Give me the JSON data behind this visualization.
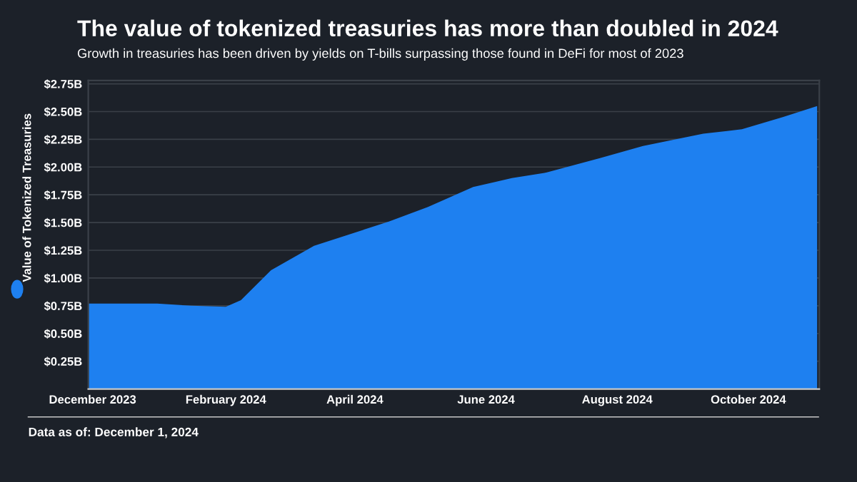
{
  "chart_data": {
    "type": "area",
    "title": "The value of tokenized treasuries has more than doubled in 2024",
    "subtitle": "Growth in treasuries has been driven by yields on T-bills surpassing those found in DeFi for most of 2023",
    "ylabel": "Value of Tokenized Treasuries",
    "x": [
      "2023-11-29",
      "2023-12-31",
      "2024-01-16",
      "2024-02-01",
      "2024-02-08",
      "2024-02-22",
      "2024-03-13",
      "2024-04-17",
      "2024-05-05",
      "2024-05-26",
      "2024-06-13",
      "2024-06-29",
      "2024-07-24",
      "2024-08-13",
      "2024-09-10",
      "2024-09-28",
      "2024-10-17",
      "2024-11-02"
    ],
    "series": [
      {
        "color": "#1e80f0",
        "values": [
          0.77,
          0.77,
          0.75,
          0.74,
          0.8,
          1.07,
          1.29,
          1.51,
          1.64,
          1.82,
          1.9,
          1.95,
          2.08,
          2.19,
          2.3,
          2.34,
          2.45,
          2.55
        ]
      }
    ],
    "xlim": [
      "2023-11-29",
      "2024-11-03"
    ],
    "xticks": [
      {
        "value": "2023-12-01",
        "label": "December 2023"
      },
      {
        "value": "2024-02-01",
        "label": "February 2024"
      },
      {
        "value": "2024-04-01",
        "label": "April 2024"
      },
      {
        "value": "2024-06-01",
        "label": "June 2024"
      },
      {
        "value": "2024-08-01",
        "label": "August 2024"
      },
      {
        "value": "2024-10-01",
        "label": "October 2024"
      }
    ],
    "ylim": [
      0,
      2.78
    ],
    "yticks": [
      {
        "value": 0.25,
        "label": "$0.25B"
      },
      {
        "value": 0.5,
        "label": "$0.50B"
      },
      {
        "value": 0.75,
        "label": "$0.75B"
      },
      {
        "value": 1.0,
        "label": "$1.00B"
      },
      {
        "value": 1.25,
        "label": "$1.25B"
      },
      {
        "value": 1.5,
        "label": "$1.50B"
      },
      {
        "value": 1.75,
        "label": "$1.75B"
      },
      {
        "value": 2.0,
        "label": "$2.00B"
      },
      {
        "value": 2.25,
        "label": "$2.25B"
      },
      {
        "value": 2.5,
        "label": "$2.50B"
      },
      {
        "value": 2.75,
        "label": "$2.75B"
      }
    ],
    "grid": "y",
    "annotations": [
      "Data as of: December 1, 2024"
    ]
  }
}
